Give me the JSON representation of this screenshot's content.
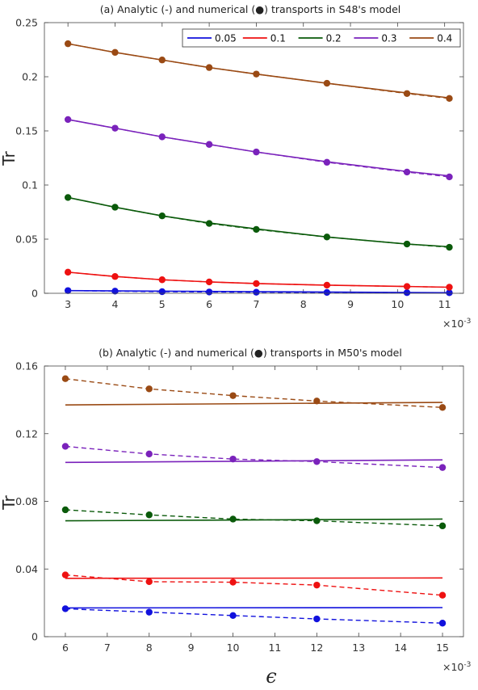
{
  "chart_data": [
    {
      "type": "line",
      "title": "(a) Analytic (-) and numerical (●) transports in S48's model",
      "xlabel": "",
      "ylabel": "Tr",
      "x_multiplier": "×10",
      "x_exponent": "-3",
      "xlim": [
        2.5,
        11.4
      ],
      "ylim": [
        0,
        0.25
      ],
      "xticks": [
        "3",
        "4",
        "5",
        "6",
        "7",
        "8",
        "9",
        "10",
        "11"
      ],
      "xtick_values": [
        3,
        4,
        5,
        6,
        7,
        8,
        9,
        10,
        11
      ],
      "yticks": [
        "0",
        "0.05",
        "0.1",
        "0.15",
        "0.2",
        "0.25"
      ],
      "ytick_values": [
        0,
        0.05,
        0.1,
        0.15,
        0.2,
        0.25
      ],
      "legend_position": "top-right",
      "legend_style": "row",
      "series": [
        {
          "name": "0.05",
          "color": "#1111dd",
          "analytic": {
            "x": [
              3,
              11.1
            ],
            "y": [
              0.0025,
              0.0005
            ]
          },
          "numerical": {
            "x": [
              3,
              4,
              5,
              6,
              7,
              8.5,
              10.2,
              11.1
            ],
            "y": [
              0.0025,
              0.002,
              0.0015,
              0.0012,
              0.001,
              0.0008,
              0.0006,
              0.0005
            ]
          }
        },
        {
          "name": "0.1",
          "color": "#ee1111",
          "analytic": {
            "x": [
              3,
              4,
              5,
              6,
              7,
              8.5,
              10.2,
              11.1
            ],
            "y": [
              0.0195,
              0.0155,
              0.0125,
              0.0105,
              0.009,
              0.0075,
              0.0063,
              0.0056
            ]
          },
          "numerical": {
            "x": [
              3,
              4,
              5,
              6,
              7,
              8.5,
              10.2,
              11.1
            ],
            "y": [
              0.0195,
              0.0155,
              0.0125,
              0.0105,
              0.009,
              0.0075,
              0.0063,
              0.0056
            ]
          }
        },
        {
          "name": "0.2",
          "color": "#0a5a0a",
          "analytic": {
            "x": [
              3,
              4,
              5,
              6,
              7,
              8.5,
              10.2,
              11.1
            ],
            "y": [
              0.0885,
              0.0795,
              0.0715,
              0.065,
              0.0595,
              0.052,
              0.0455,
              0.043
            ]
          },
          "numerical": {
            "x": [
              3,
              4,
              5,
              6,
              7,
              8.5,
              10.2,
              11.1
            ],
            "y": [
              0.0885,
              0.0795,
              0.0715,
              0.0645,
              0.059,
              0.052,
              0.0455,
              0.0425
            ]
          }
        },
        {
          "name": "0.3",
          "color": "#7a22bb",
          "analytic": {
            "x": [
              3,
              4,
              5,
              6,
              7,
              8.5,
              10.2,
              11.1
            ],
            "y": [
              0.1605,
              0.1525,
              0.1445,
              0.1375,
              0.1305,
              0.1215,
              0.1125,
              0.1085
            ]
          },
          "numerical": {
            "x": [
              3,
              4,
              5,
              6,
              7,
              8.5,
              10.2,
              11.1
            ],
            "y": [
              0.1605,
              0.1525,
              0.1445,
              0.1375,
              0.1305,
              0.121,
              0.112,
              0.1075
            ]
          }
        },
        {
          "name": "0.4",
          "color": "#9a4a14",
          "analytic": {
            "x": [
              3,
              4,
              5,
              6,
              7,
              8.5,
              10.2,
              11.1
            ],
            "y": [
              0.2305,
              0.2225,
              0.2155,
              0.2085,
              0.2025,
              0.194,
              0.185,
              0.1805
            ]
          },
          "numerical": {
            "x": [
              3,
              4,
              5,
              6,
              7,
              8.5,
              10.2,
              11.1
            ],
            "y": [
              0.2305,
              0.2225,
              0.2155,
              0.2085,
              0.2025,
              0.194,
              0.1845,
              0.18
            ]
          }
        }
      ]
    },
    {
      "type": "line",
      "title": "(b) Analytic (-) and numerical (●) transports in M50's model",
      "xlabel": "ϵ",
      "ylabel": "Tr",
      "x_multiplier": "×10",
      "x_exponent": "-3",
      "xlim": [
        5.5,
        15.5
      ],
      "ylim": [
        0,
        0.16
      ],
      "xticks": [
        "6",
        "7",
        "8",
        "9",
        "10",
        "11",
        "12",
        "13",
        "14",
        "15"
      ],
      "xtick_values": [
        6,
        7,
        8,
        9,
        10,
        11,
        12,
        13,
        14,
        15
      ],
      "yticks": [
        "0",
        "0.04",
        "0.08",
        "0.12",
        "0.16"
      ],
      "ytick_values": [
        0,
        0.04,
        0.08,
        0.12,
        0.16
      ],
      "series": [
        {
          "name": "0.05",
          "color": "#1111dd",
          "analytic": {
            "x": [
              6,
              15
            ],
            "y": [
              0.017,
              0.0172
            ]
          },
          "numerical": {
            "x": [
              6,
              8,
              10,
              12,
              15
            ],
            "y": [
              0.0165,
              0.0145,
              0.0125,
              0.0105,
              0.008
            ]
          }
        },
        {
          "name": "0.1",
          "color": "#ee1111",
          "analytic": {
            "x": [
              6,
              15
            ],
            "y": [
              0.0345,
              0.0347
            ]
          },
          "numerical": {
            "x": [
              6,
              8,
              10,
              12,
              15
            ],
            "y": [
              0.0365,
              0.0325,
              0.0322,
              0.0305,
              0.0245
            ]
          }
        },
        {
          "name": "0.2",
          "color": "#0a5a0a",
          "analytic": {
            "x": [
              6,
              15
            ],
            "y": [
              0.0685,
              0.0695
            ]
          },
          "numerical": {
            "x": [
              6,
              8,
              10,
              12,
              15
            ],
            "y": [
              0.075,
              0.072,
              0.0695,
              0.0685,
              0.0655
            ]
          }
        },
        {
          "name": "0.3",
          "color": "#7a22bb",
          "analytic": {
            "x": [
              6,
              15
            ],
            "y": [
              0.103,
              0.1045
            ]
          },
          "numerical": {
            "x": [
              6,
              8,
              10,
              12,
              15
            ],
            "y": [
              0.1125,
              0.108,
              0.105,
              0.1035,
              0.1
            ]
          }
        },
        {
          "name": "0.4",
          "color": "#9a4a14",
          "analytic": {
            "x": [
              6,
              15
            ],
            "y": [
              0.137,
              0.1385
            ]
          },
          "numerical": {
            "x": [
              6,
              8,
              10,
              12,
              15
            ],
            "y": [
              0.1525,
              0.1465,
              0.1425,
              0.1393,
              0.1355
            ]
          }
        }
      ]
    }
  ]
}
